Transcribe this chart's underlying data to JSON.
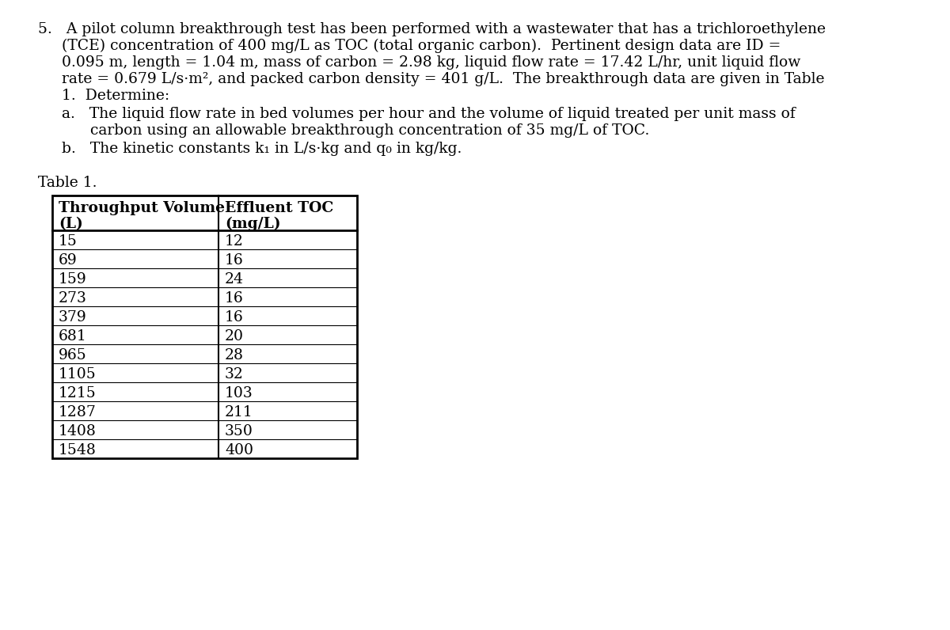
{
  "background_color": "#ffffff",
  "paragraph_text": [
    "5.   A pilot column breakthrough test has been performed with a wastewater that has a trichloroethylene",
    "     (TCE) concentration of 400 mg/L as TOC (total organic carbon).  Pertinent design data are ID =",
    "     0.095 m, length = 1.04 m, mass of carbon = 2.98 kg, liquid flow rate = 17.42 L/hr, unit liquid flow",
    "     rate = 0.679 L/s·m², and packed carbon density = 401 g/L.  The breakthrough data are given in Table",
    "     1.  Determine:"
  ],
  "part_a_label": "     a.   The liquid flow rate in bed volumes per hour and the volume of liquid treated per unit mass of",
  "part_a_cont": "           carbon using an allowable breakthrough concentration of 35 mg/L of TOC.",
  "part_b": "     b.   The kinetic constants k₁ in L/s·kg and q₀ in kg/kg.",
  "table_label": "Table 1.",
  "col1_header_line1": "Throughput Volume",
  "col1_header_line2": "(L)",
  "col2_header_line1": "Effluent TOC",
  "col2_header_line2": "(mg/L)",
  "throughput_volume": [
    15,
    69,
    159,
    273,
    379,
    681,
    965,
    1105,
    1215,
    1287,
    1408,
    1548
  ],
  "effluent_toc": [
    12,
    16,
    24,
    16,
    16,
    20,
    28,
    32,
    103,
    211,
    350,
    400
  ],
  "font_size_body": 13.5,
  "font_size_table_header": 13.5,
  "font_size_table_data": 13.5,
  "text_color": "#000000"
}
